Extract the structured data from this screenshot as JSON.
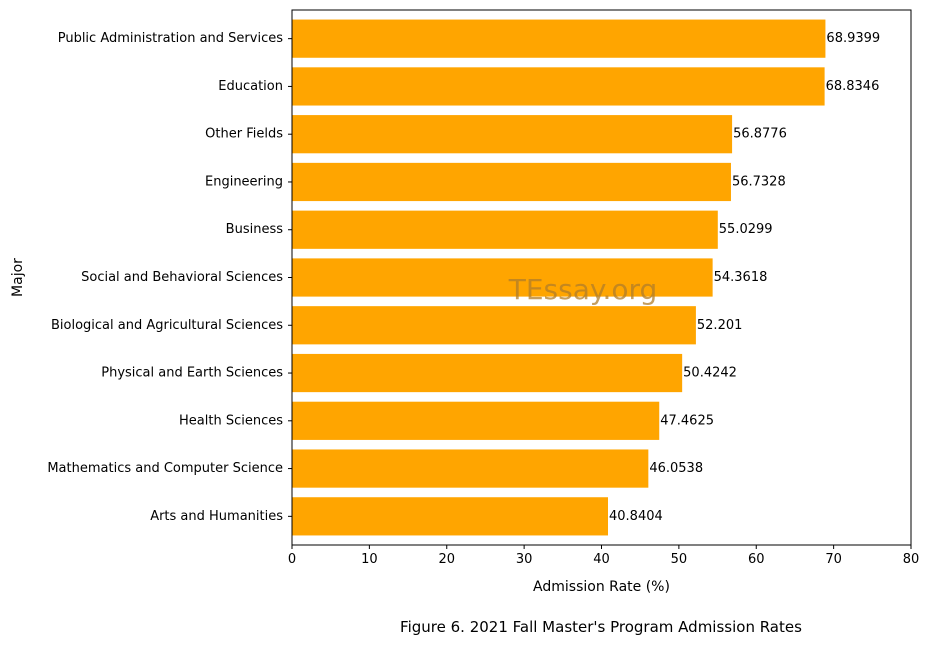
{
  "chart_data": {
    "type": "bar",
    "orientation": "horizontal",
    "categories": [
      "Public Administration and Services",
      "Education",
      "Other Fields",
      "Engineering",
      "Business",
      "Social and Behavioral Sciences",
      "Biological and Agricultural Sciences",
      "Physical and Earth Sciences",
      "Health Sciences",
      "Mathematics and Computer Science",
      "Arts and Humanities"
    ],
    "values": [
      68.9399,
      68.8346,
      56.8776,
      56.7328,
      55.0299,
      54.3618,
      52.201,
      50.4242,
      47.4625,
      46.0538,
      40.8404
    ],
    "value_labels": [
      "68.9399",
      "68.8346",
      "56.8776",
      "56.7328",
      "55.0299",
      "54.3618",
      "52.201",
      "50.4242",
      "47.4625",
      "46.0538",
      "40.8404"
    ],
    "xlabel": "Admission Rate (%)",
    "ylabel": "Major",
    "xlim": [
      0,
      80
    ],
    "xticks": [
      0,
      10,
      20,
      30,
      40,
      50,
      60,
      70,
      80
    ],
    "bar_color": "#ffa500",
    "grid": false,
    "caption": "Figure 6. 2021 Fall Master's Program Admission Rates",
    "watermark": "TEssay.org"
  }
}
